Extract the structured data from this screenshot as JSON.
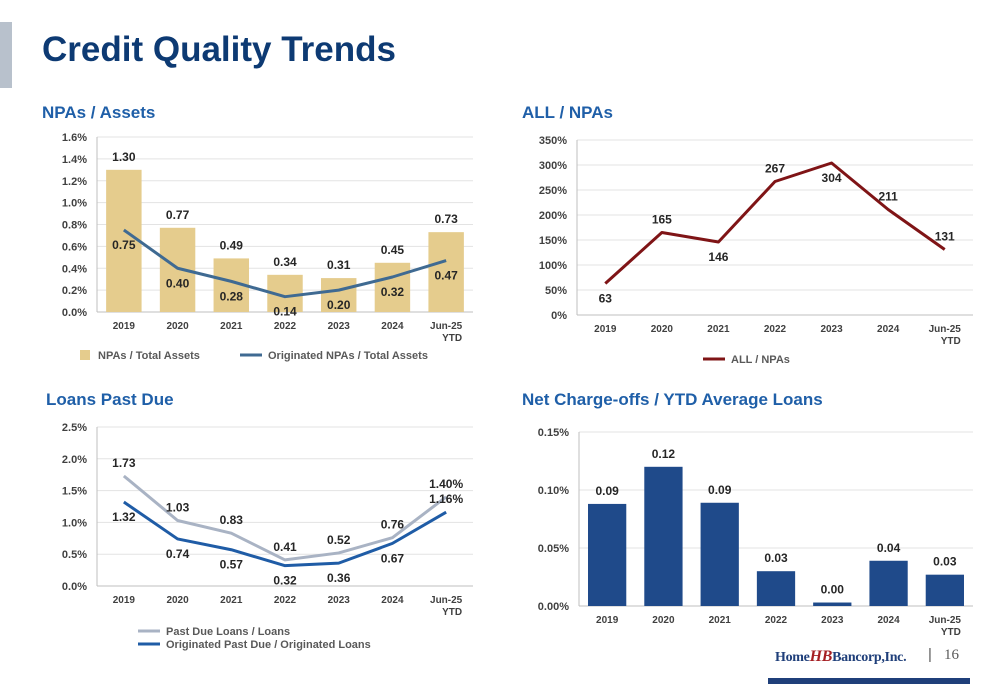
{
  "page": {
    "title": "Credit Quality Trends",
    "page_number": "16",
    "separator": "|",
    "logo": {
      "home": "Home",
      "mark": "HB",
      "rest": "Bancorp,Inc."
    }
  },
  "colors": {
    "title": "#0d3a73",
    "chart_title": "#1f5fa8",
    "tan_bar": "#e5cc8d",
    "steel_line": "#3f6a92",
    "dark_red": "#7f1416",
    "gray_line": "#a9b3c4",
    "blue_line": "#1f5ca6",
    "navy_bar": "#1f4a8a"
  },
  "chart_data": [
    {
      "id": "npa",
      "type": "bar",
      "title": "NPAs / Assets",
      "categories": [
        "2019",
        "2020",
        "2021",
        "2022",
        "2023",
        "2024",
        "Jun-25|YTD"
      ],
      "ylim": [
        0,
        1.6
      ],
      "yticks": [
        "0.0%",
        "0.2%",
        "0.4%",
        "0.6%",
        "0.8%",
        "1.0%",
        "1.2%",
        "1.4%",
        "1.6%"
      ],
      "grid": true,
      "legend": "bottom",
      "series": [
        {
          "name": "NPAs / Total Assets",
          "kind": "bar",
          "color": "#e5cc8d",
          "values": [
            1.3,
            0.77,
            0.49,
            0.34,
            0.31,
            0.45,
            0.73
          ],
          "labels": [
            "1.30",
            "0.77",
            "0.49",
            "0.34",
            "0.31",
            "0.45",
            "0.73"
          ],
          "label_pos": [
            "above",
            "above",
            "above",
            "above",
            "above",
            "above",
            "above"
          ]
        },
        {
          "name": "Originated NPAs / Total Assets",
          "kind": "line",
          "color": "#3f6a92",
          "values": [
            0.75,
            0.4,
            0.28,
            0.14,
            0.2,
            0.32,
            0.47
          ],
          "labels": [
            "0.75",
            "0.40",
            "0.28",
            "0.14",
            "0.20",
            "0.32",
            "0.47"
          ],
          "label_pos": [
            "below",
            "below",
            "below",
            "below",
            "below",
            "below",
            "below"
          ]
        }
      ]
    },
    {
      "id": "all",
      "type": "line",
      "title": "ALL / NPAs",
      "categories": [
        "2019",
        "2020",
        "2021",
        "2022",
        "2023",
        "2024",
        "Jun-25|YTD"
      ],
      "ylim": [
        0,
        350
      ],
      "yticks": [
        "0%",
        "50%",
        "100%",
        "150%",
        "200%",
        "250%",
        "300%",
        "350%"
      ],
      "grid": true,
      "legend": "bottom",
      "series": [
        {
          "name": "ALL / NPAs",
          "kind": "line",
          "color": "#7f1416",
          "values": [
            63,
            165,
            146,
            267,
            304,
            211,
            131
          ],
          "labels": [
            "63",
            "165",
            "146",
            "267",
            "304",
            "211",
            "131"
          ],
          "label_pos": [
            "below",
            "above",
            "below",
            "above",
            "below",
            "above",
            "above"
          ]
        }
      ]
    },
    {
      "id": "lpd",
      "type": "line",
      "title": "Loans Past Due",
      "categories": [
        "2019",
        "2020",
        "2021",
        "2022",
        "2023",
        "2024",
        "Jun-25|YTD"
      ],
      "ylim": [
        0,
        2.5
      ],
      "yticks": [
        "0.0%",
        "0.5%",
        "1.0%",
        "1.5%",
        "2.0%",
        "2.5%"
      ],
      "grid": true,
      "legend": "bottom",
      "series": [
        {
          "name": "Past Due Loans / Loans",
          "kind": "line",
          "color": "#a9b3c4",
          "values": [
            1.73,
            1.03,
            0.83,
            0.41,
            0.52,
            0.76,
            1.4
          ],
          "labels": [
            "1.73",
            "1.03",
            "0.83",
            "0.41",
            "0.52",
            "0.76",
            "1.40%"
          ],
          "label_pos": [
            "above",
            "above",
            "above",
            "above",
            "above",
            "above",
            "above"
          ]
        },
        {
          "name": "Originated Past Due / Originated Loans",
          "kind": "line",
          "color": "#1f5ca6",
          "values": [
            1.32,
            0.74,
            0.57,
            0.32,
            0.36,
            0.67,
            1.16
          ],
          "labels": [
            "1.32",
            "0.74",
            "0.57",
            "0.32",
            "0.36",
            "0.67",
            "1.16%"
          ],
          "label_pos": [
            "below",
            "below",
            "below",
            "below",
            "below",
            "below",
            "above"
          ]
        }
      ]
    },
    {
      "id": "nco",
      "type": "bar",
      "title": "Net Charge-offs / YTD Average Loans",
      "categories": [
        "2019",
        "2020",
        "2021",
        "2022",
        "2023",
        "2024",
        "Jun-25|YTD"
      ],
      "ylim": [
        0,
        0.15
      ],
      "yticks": [
        "0.00%",
        "0.05%",
        "0.10%",
        "0.15%"
      ],
      "grid": true,
      "legend": "none",
      "series": [
        {
          "name": "",
          "kind": "bar",
          "color": "#1f4a8a",
          "values": [
            0.088,
            0.12,
            0.089,
            0.03,
            0.003,
            0.039,
            0.027
          ],
          "labels": [
            "0.09",
            "0.12",
            "0.09",
            "0.03",
            "0.00",
            "0.04",
            "0.03"
          ],
          "label_pos": [
            "above",
            "above",
            "above",
            "above",
            "above",
            "above",
            "above"
          ]
        }
      ]
    }
  ]
}
